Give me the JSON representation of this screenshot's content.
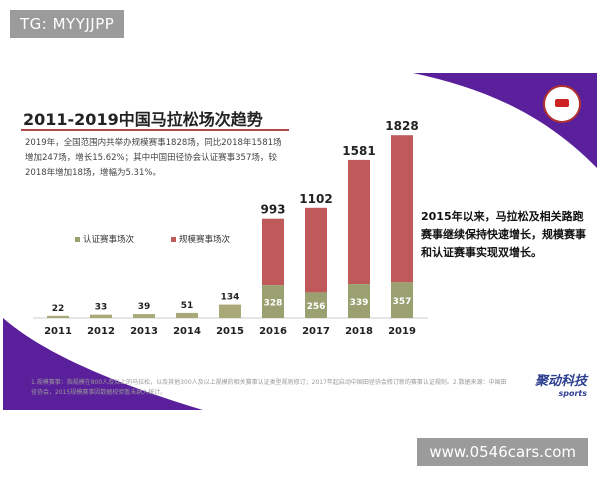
{
  "watermarks": {
    "top": "TG: MYYJJPP",
    "bottom": "www.0546cars.com"
  },
  "slide": {
    "title": "2011-2019中国马拉松场次趋势",
    "summary": "2019年，全国范围内共举办规模赛事1828场，同比2018年1581场增加247场，增长15.62%；其中中国田径协会认证赛事357场，较2018年增加18场，增幅为5.31%。",
    "right_note": "2015年以来，马拉松及相关路跑赛事继续保持快速增长，规模赛事和认证赛事实现双增长。",
    "footnote": "1.规模赛事：指规模在800人及以上的马拉松，以及其他300人及以上规模的相关赛事认证类型规则修订；2017年起启动中国田径协会修订新的赛事认证规则。2.数据来源：中国田径协会，2015规模赛事因数据校验暂未纳入统计。",
    "brand": "聚动科技",
    "brand_sub": "sports"
  },
  "colors": {
    "certified": "#9aa070",
    "scale": "#c05a5a",
    "purple": "#5a1f9a",
    "base_bar": "#a8a878"
  },
  "chart_data": {
    "type": "bar",
    "title": "2011-2019中国马拉松场次趋势",
    "categories": [
      "2011",
      "2012",
      "2013",
      "2014",
      "2015",
      "2016",
      "2017",
      "2018",
      "2019"
    ],
    "series": [
      {
        "name": "认证赛事场次",
        "values": [
          null,
          null,
          null,
          null,
          null,
          328,
          256,
          339,
          357
        ]
      },
      {
        "name": "规模赛事场次",
        "values": [
          22,
          33,
          39,
          51,
          134,
          993,
          1102,
          1581,
          1828
        ]
      }
    ],
    "legend": [
      "认证赛事场次",
      "规模赛事场次"
    ],
    "ylim": [
      0,
      1900
    ],
    "grid": false
  }
}
